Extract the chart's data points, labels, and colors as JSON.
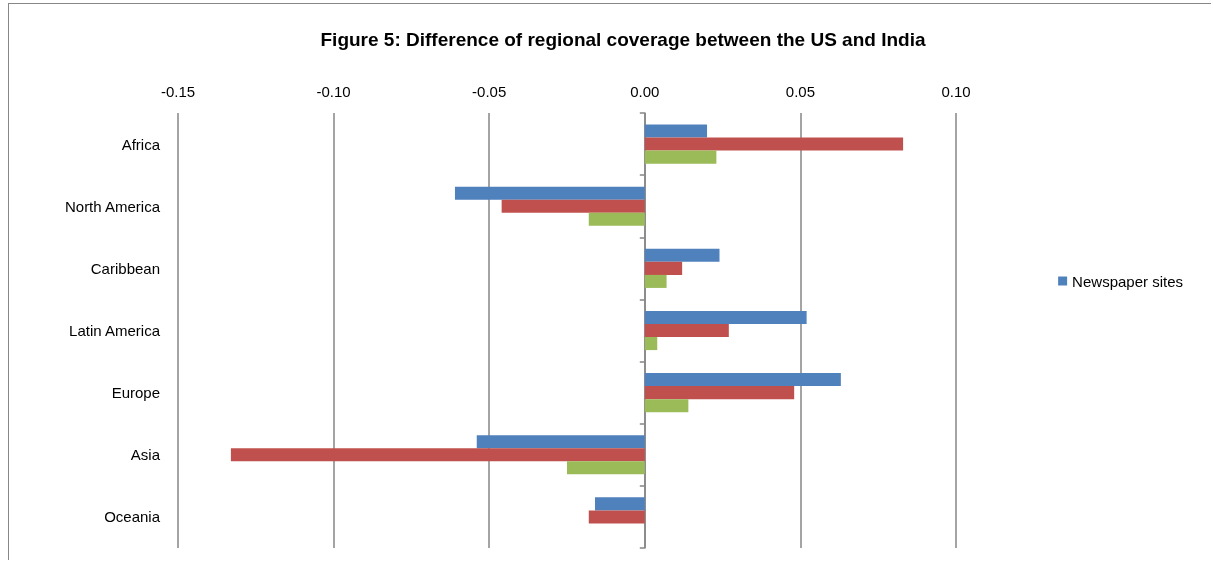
{
  "chart_data": {
    "type": "bar",
    "orientation": "horizontal",
    "title": "Figure 5: Difference of regional coverage between the US and India",
    "categories": [
      "Africa",
      "North America",
      "Caribbean",
      "Latin America",
      "Europe",
      "Asia",
      "Oceania"
    ],
    "series": [
      {
        "name": "Newspaper sites",
        "color": "#4f81bd",
        "values": [
          0.02,
          -0.061,
          0.024,
          0.052,
          0.063,
          -0.054,
          -0.016
        ]
      },
      {
        "color": "#c0504d",
        "values": [
          0.083,
          -0.046,
          0.012,
          0.027,
          0.048,
          -0.133,
          -0.018
        ]
      },
      {
        "color": "#9bbb59",
        "values": [
          0.023,
          -0.018,
          0.007,
          0.004,
          0.014,
          -0.025,
          0
        ]
      }
    ],
    "xlim": [
      -0.15,
      0.1
    ],
    "xticks": [
      -0.15,
      {
        "value": -0.1,
        "label": "-0.10"
      },
      -0.05,
      {
        "value": 0,
        "label": "0.00"
      },
      0.05,
      {
        "value": 0.1,
        "label": "0.10"
      }
    ],
    "grid": "x",
    "legend": "right"
  }
}
